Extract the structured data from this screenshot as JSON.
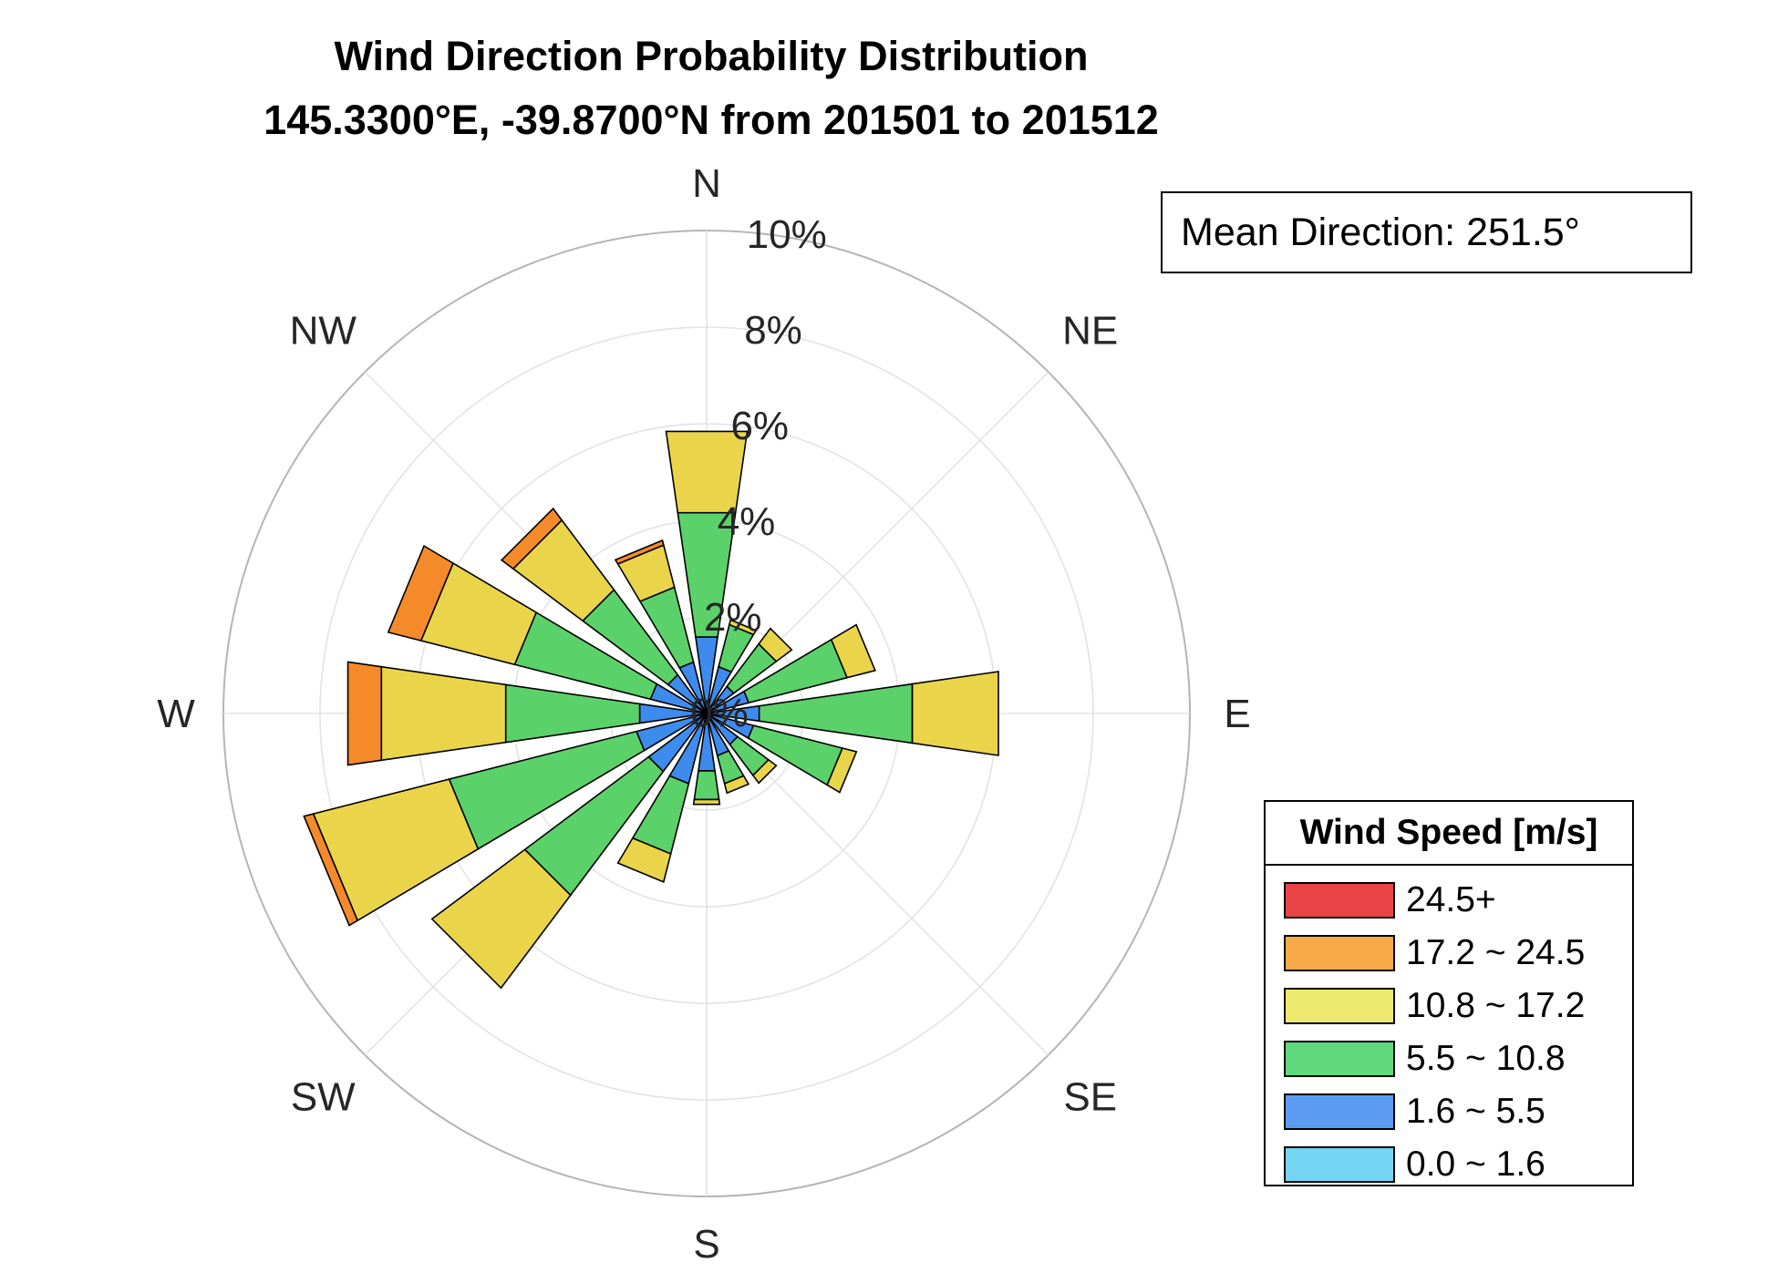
{
  "title": {
    "line1": "Wind Direction Probability Distribution",
    "line2": "145.3300°E, -39.8700°N from 201501 to 201512"
  },
  "mean_direction_text": "Mean Direction: 251.5°",
  "legend": {
    "title": "Wind Speed [m/s]",
    "items": [
      {
        "label": "24.5+",
        "color": "#e84345"
      },
      {
        "label": "17.2 ~ 24.5",
        "color": "#f9aa48"
      },
      {
        "label": "10.8 ~ 17.2",
        "color": "#ede96e"
      },
      {
        "label": "5.5 ~ 10.8",
        "color": "#5fd97c"
      },
      {
        "label": "1.6 ~ 5.5",
        "color": "#5b9cf2"
      },
      {
        "label": "0.0 ~ 1.6",
        "color": "#73d5f2"
      }
    ]
  },
  "chart_data": {
    "type": "wind-rose",
    "radial_unit": "%",
    "radial_ticks": [
      "0%",
      "2%",
      "4%",
      "6%",
      "8%",
      "10%"
    ],
    "rlim": [
      0,
      10
    ],
    "direction_labels": [
      "N",
      "NE",
      "E",
      "SE",
      "S",
      "SW",
      "W",
      "NW"
    ],
    "sector_width_deg": 16.36,
    "bin_colors": [
      "#73d5f2",
      "#3d8bec",
      "#5bd16a",
      "#ead54a",
      "#f58a2a",
      "#e84345"
    ],
    "grid": true,
    "sectors": [
      {
        "direction_deg": 0,
        "cumulative": [
          0.1,
          1.6,
          4.2,
          5.9,
          5.9,
          5.9
        ]
      },
      {
        "direction_deg": 22.5,
        "cumulative": [
          0.1,
          1.0,
          1.9,
          2.0,
          2.0,
          2.0
        ]
      },
      {
        "direction_deg": 45,
        "cumulative": [
          0.1,
          0.7,
          1.8,
          2.2,
          2.2,
          2.2
        ]
      },
      {
        "direction_deg": 67.5,
        "cumulative": [
          0.1,
          0.9,
          3.0,
          3.6,
          3.6,
          3.6
        ]
      },
      {
        "direction_deg": 90,
        "cumulative": [
          0.1,
          1.1,
          4.3,
          6.1,
          6.1,
          6.1
        ]
      },
      {
        "direction_deg": 112.5,
        "cumulative": [
          0.1,
          1.0,
          2.9,
          3.2,
          3.2,
          3.2
        ]
      },
      {
        "direction_deg": 135,
        "cumulative": [
          0.1,
          0.8,
          1.6,
          1.8,
          1.8,
          1.8
        ]
      },
      {
        "direction_deg": 157.5,
        "cumulative": [
          0.1,
          0.9,
          1.5,
          1.7,
          1.7,
          1.7
        ]
      },
      {
        "direction_deg": 180,
        "cumulative": [
          0.1,
          1.2,
          1.8,
          1.9,
          1.9,
          1.9
        ]
      },
      {
        "direction_deg": 202.5,
        "cumulative": [
          0.1,
          1.5,
          3.0,
          3.6,
          3.6,
          3.6
        ]
      },
      {
        "direction_deg": 225,
        "cumulative": [
          0.1,
          1.5,
          4.7,
          7.1,
          7.1,
          7.1
        ]
      },
      {
        "direction_deg": 247.5,
        "cumulative": [
          0.1,
          1.5,
          5.5,
          8.4,
          8.6,
          8.6
        ]
      },
      {
        "direction_deg": 270,
        "cumulative": [
          0.1,
          1.4,
          4.2,
          6.8,
          7.5,
          7.5
        ]
      },
      {
        "direction_deg": 292.5,
        "cumulative": [
          0.1,
          1.2,
          4.1,
          6.1,
          6.8,
          6.8
        ]
      },
      {
        "direction_deg": 315,
        "cumulative": [
          0.1,
          1.0,
          3.2,
          5.0,
          5.3,
          5.3
        ]
      },
      {
        "direction_deg": 337.5,
        "cumulative": [
          0.1,
          1.1,
          2.7,
          3.6,
          3.7,
          3.7
        ]
      }
    ]
  }
}
